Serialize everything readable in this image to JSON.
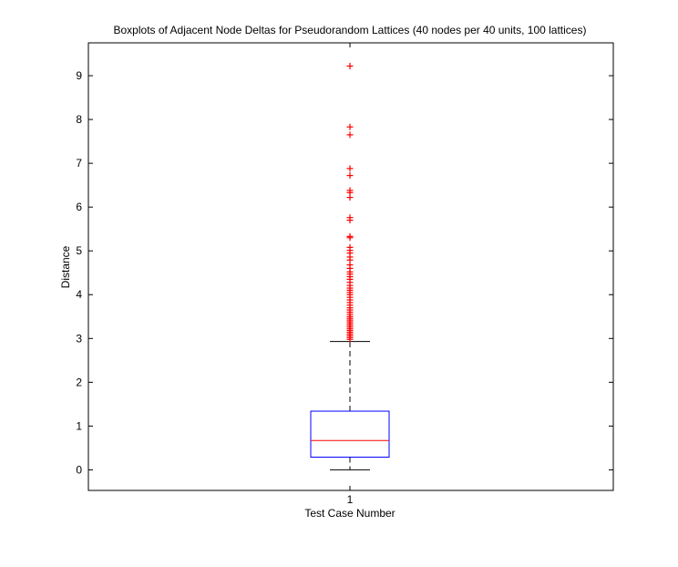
{
  "chart_data": {
    "type": "boxplot",
    "title": "Boxplots of Adjacent Node Deltas for Pseudorandom Lattices (40 nodes per 40 units, 100 lattices)",
    "xlabel": "Test Case Number",
    "ylabel": "Distance",
    "categories": [
      "1"
    ],
    "ylim": [
      -0.47,
      9.75
    ],
    "yticks": [
      0,
      1,
      2,
      3,
      4,
      5,
      6,
      7,
      8,
      9
    ],
    "grid": false,
    "box": {
      "whisker_low": 0.0,
      "q1": 0.29,
      "median": 0.67,
      "q3": 1.34,
      "whisker_high": 2.93
    },
    "outliers": [
      9.22,
      7.83,
      7.65,
      6.88,
      6.72,
      6.38,
      6.33,
      6.22,
      5.76,
      5.7,
      5.33,
      5.3,
      5.08,
      5.01,
      4.95,
      4.86,
      4.79,
      4.68,
      4.6,
      4.52,
      4.47,
      4.41,
      4.35,
      4.28,
      4.21,
      4.15,
      4.1,
      4.05,
      4.0,
      3.94,
      3.88,
      3.82,
      3.76,
      3.7,
      3.65,
      3.6,
      3.55,
      3.5,
      3.46,
      3.42,
      3.38,
      3.34,
      3.3,
      3.26,
      3.22,
      3.18,
      3.14,
      3.1,
      3.06,
      3.02,
      2.98
    ],
    "colors": {
      "box": "#0000ff",
      "median": "#ff0000",
      "whisker": "#000000",
      "outlier": "#ff0000"
    }
  }
}
